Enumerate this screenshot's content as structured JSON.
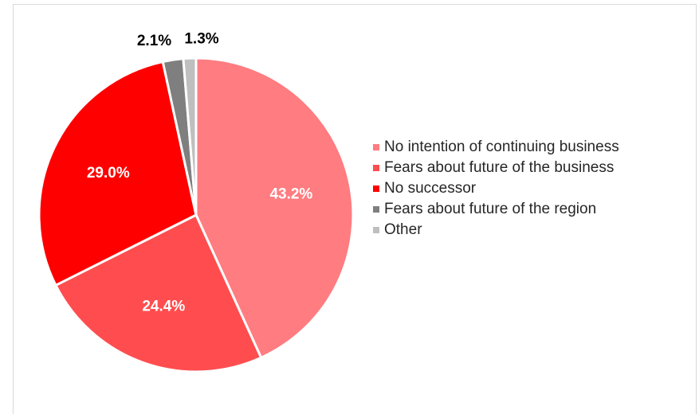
{
  "chart_data": {
    "type": "pie",
    "title": "",
    "slices": [
      {
        "label": "No intention of continuing business",
        "value": 43.2,
        "value_label": "43.2%",
        "color": "#ff7c80"
      },
      {
        "label": "Fears about future of the business",
        "value": 24.4,
        "value_label": "24.4%",
        "color": "#ff4d4f"
      },
      {
        "label": "No successor",
        "value": 29.0,
        "value_label": "29.0%",
        "color": "#ff0000"
      },
      {
        "label": "Fears about future of the region",
        "value": 2.1,
        "value_label": "2.1%",
        "color": "#7f7f7f"
      },
      {
        "label": "Other",
        "value": 1.3,
        "value_label": "1.3%",
        "color": "#bfbfbf"
      }
    ],
    "start_angle": "12 o'clock",
    "direction": "clockwise",
    "legend_position": "right",
    "data_label_colors": {
      "inside": "#ffffff",
      "outside": "#000000"
    }
  }
}
